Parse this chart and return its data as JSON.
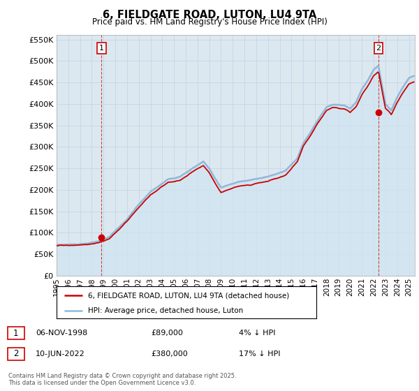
{
  "title": "6, FIELDGATE ROAD, LUTON, LU4 9TA",
  "subtitle": "Price paid vs. HM Land Registry's House Price Index (HPI)",
  "legend_label_red": "6, FIELDGATE ROAD, LUTON, LU4 9TA (detached house)",
  "legend_label_blue": "HPI: Average price, detached house, Luton",
  "annotation1_label": "1",
  "annotation1_date": "06-NOV-1998",
  "annotation1_price": 89000,
  "annotation1_note": "4% ↓ HPI",
  "annotation2_label": "2",
  "annotation2_date": "10-JUN-2022",
  "annotation2_price": 380000,
  "annotation2_note": "17% ↓ HPI",
  "footer": "Contains HM Land Registry data © Crown copyright and database right 2025.\nThis data is licensed under the Open Government Licence v3.0.",
  "ylim": [
    0,
    560000
  ],
  "yticks": [
    0,
    50000,
    100000,
    150000,
    200000,
    250000,
    300000,
    350000,
    400000,
    450000,
    500000,
    550000
  ],
  "hpi_color": "#90b8d8",
  "hpi_fill_color": "#d0e4f0",
  "price_color": "#cc0000",
  "grid_color": "#c8d8e8",
  "background_color": "#ffffff",
  "chart_bg_color": "#dce8f0"
}
